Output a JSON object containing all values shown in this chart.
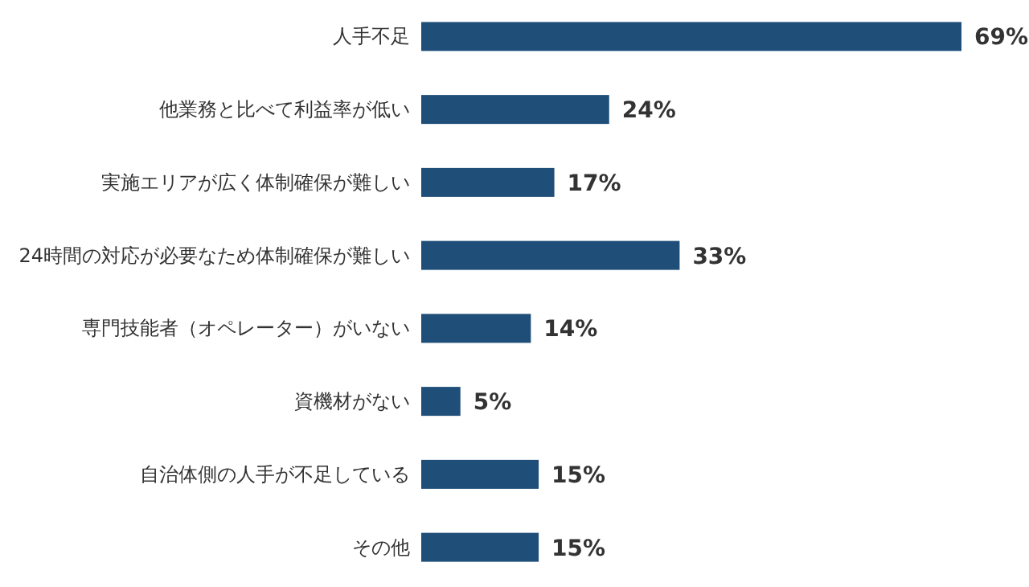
{
  "chart_data": {
    "type": "bar",
    "orientation": "horizontal",
    "categories": [
      "人手不足",
      "他業務と比べて利益率が低い",
      "実施エリアが広く体制確保が難しい",
      "24時間の対応が必要なため体制確保が難しい",
      "専門技能者（オペレーター）がいない",
      "資機材がない",
      "自治体側の人手が不足している",
      "その他"
    ],
    "values": [
      69,
      24,
      17,
      33,
      14,
      5,
      15,
      15
    ],
    "value_labels": [
      "69%",
      "24%",
      "17%",
      "33%",
      "14%",
      "5%",
      "15%",
      "15%"
    ],
    "color": "#1f4e79"
  }
}
